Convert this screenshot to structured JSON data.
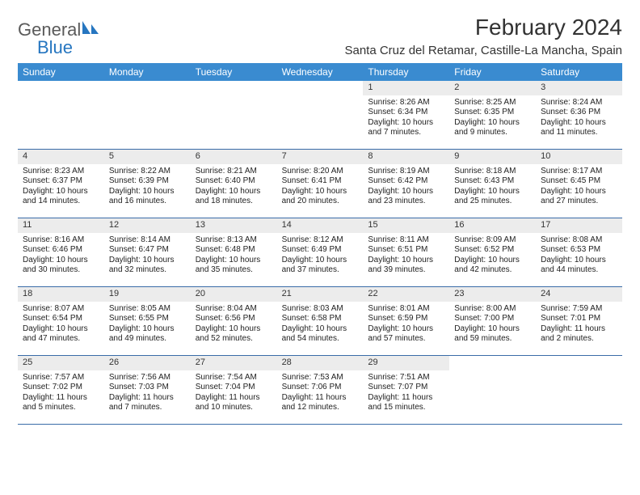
{
  "brand": {
    "general": "General",
    "blue": "Blue"
  },
  "title": "February 2024",
  "location": "Santa Cruz del Retamar, Castille-La Mancha, Spain",
  "colors": {
    "header_bg": "#3a8bd0",
    "week_divider": "#3a6ca8",
    "daynum_bg": "#ececec",
    "logo_blue": "#2676c0",
    "logo_gray": "#5a5a5a"
  },
  "daysOfWeek": [
    "Sunday",
    "Monday",
    "Tuesday",
    "Wednesday",
    "Thursday",
    "Friday",
    "Saturday"
  ],
  "weeks": [
    [
      null,
      null,
      null,
      null,
      {
        "n": "1",
        "sr": "Sunrise: 8:26 AM",
        "ss": "Sunset: 6:34 PM",
        "d1": "Daylight: 10 hours",
        "d2": "and 7 minutes."
      },
      {
        "n": "2",
        "sr": "Sunrise: 8:25 AM",
        "ss": "Sunset: 6:35 PM",
        "d1": "Daylight: 10 hours",
        "d2": "and 9 minutes."
      },
      {
        "n": "3",
        "sr": "Sunrise: 8:24 AM",
        "ss": "Sunset: 6:36 PM",
        "d1": "Daylight: 10 hours",
        "d2": "and 11 minutes."
      }
    ],
    [
      {
        "n": "4",
        "sr": "Sunrise: 8:23 AM",
        "ss": "Sunset: 6:37 PM",
        "d1": "Daylight: 10 hours",
        "d2": "and 14 minutes."
      },
      {
        "n": "5",
        "sr": "Sunrise: 8:22 AM",
        "ss": "Sunset: 6:39 PM",
        "d1": "Daylight: 10 hours",
        "d2": "and 16 minutes."
      },
      {
        "n": "6",
        "sr": "Sunrise: 8:21 AM",
        "ss": "Sunset: 6:40 PM",
        "d1": "Daylight: 10 hours",
        "d2": "and 18 minutes."
      },
      {
        "n": "7",
        "sr": "Sunrise: 8:20 AM",
        "ss": "Sunset: 6:41 PM",
        "d1": "Daylight: 10 hours",
        "d2": "and 20 minutes."
      },
      {
        "n": "8",
        "sr": "Sunrise: 8:19 AM",
        "ss": "Sunset: 6:42 PM",
        "d1": "Daylight: 10 hours",
        "d2": "and 23 minutes."
      },
      {
        "n": "9",
        "sr": "Sunrise: 8:18 AM",
        "ss": "Sunset: 6:43 PM",
        "d1": "Daylight: 10 hours",
        "d2": "and 25 minutes."
      },
      {
        "n": "10",
        "sr": "Sunrise: 8:17 AM",
        "ss": "Sunset: 6:45 PM",
        "d1": "Daylight: 10 hours",
        "d2": "and 27 minutes."
      }
    ],
    [
      {
        "n": "11",
        "sr": "Sunrise: 8:16 AM",
        "ss": "Sunset: 6:46 PM",
        "d1": "Daylight: 10 hours",
        "d2": "and 30 minutes."
      },
      {
        "n": "12",
        "sr": "Sunrise: 8:14 AM",
        "ss": "Sunset: 6:47 PM",
        "d1": "Daylight: 10 hours",
        "d2": "and 32 minutes."
      },
      {
        "n": "13",
        "sr": "Sunrise: 8:13 AM",
        "ss": "Sunset: 6:48 PM",
        "d1": "Daylight: 10 hours",
        "d2": "and 35 minutes."
      },
      {
        "n": "14",
        "sr": "Sunrise: 8:12 AM",
        "ss": "Sunset: 6:49 PM",
        "d1": "Daylight: 10 hours",
        "d2": "and 37 minutes."
      },
      {
        "n": "15",
        "sr": "Sunrise: 8:11 AM",
        "ss": "Sunset: 6:51 PM",
        "d1": "Daylight: 10 hours",
        "d2": "and 39 minutes."
      },
      {
        "n": "16",
        "sr": "Sunrise: 8:09 AM",
        "ss": "Sunset: 6:52 PM",
        "d1": "Daylight: 10 hours",
        "d2": "and 42 minutes."
      },
      {
        "n": "17",
        "sr": "Sunrise: 8:08 AM",
        "ss": "Sunset: 6:53 PM",
        "d1": "Daylight: 10 hours",
        "d2": "and 44 minutes."
      }
    ],
    [
      {
        "n": "18",
        "sr": "Sunrise: 8:07 AM",
        "ss": "Sunset: 6:54 PM",
        "d1": "Daylight: 10 hours",
        "d2": "and 47 minutes."
      },
      {
        "n": "19",
        "sr": "Sunrise: 8:05 AM",
        "ss": "Sunset: 6:55 PM",
        "d1": "Daylight: 10 hours",
        "d2": "and 49 minutes."
      },
      {
        "n": "20",
        "sr": "Sunrise: 8:04 AM",
        "ss": "Sunset: 6:56 PM",
        "d1": "Daylight: 10 hours",
        "d2": "and 52 minutes."
      },
      {
        "n": "21",
        "sr": "Sunrise: 8:03 AM",
        "ss": "Sunset: 6:58 PM",
        "d1": "Daylight: 10 hours",
        "d2": "and 54 minutes."
      },
      {
        "n": "22",
        "sr": "Sunrise: 8:01 AM",
        "ss": "Sunset: 6:59 PM",
        "d1": "Daylight: 10 hours",
        "d2": "and 57 minutes."
      },
      {
        "n": "23",
        "sr": "Sunrise: 8:00 AM",
        "ss": "Sunset: 7:00 PM",
        "d1": "Daylight: 10 hours",
        "d2": "and 59 minutes."
      },
      {
        "n": "24",
        "sr": "Sunrise: 7:59 AM",
        "ss": "Sunset: 7:01 PM",
        "d1": "Daylight: 11 hours",
        "d2": "and 2 minutes."
      }
    ],
    [
      {
        "n": "25",
        "sr": "Sunrise: 7:57 AM",
        "ss": "Sunset: 7:02 PM",
        "d1": "Daylight: 11 hours",
        "d2": "and 5 minutes."
      },
      {
        "n": "26",
        "sr": "Sunrise: 7:56 AM",
        "ss": "Sunset: 7:03 PM",
        "d1": "Daylight: 11 hours",
        "d2": "and 7 minutes."
      },
      {
        "n": "27",
        "sr": "Sunrise: 7:54 AM",
        "ss": "Sunset: 7:04 PM",
        "d1": "Daylight: 11 hours",
        "d2": "and 10 minutes."
      },
      {
        "n": "28",
        "sr": "Sunrise: 7:53 AM",
        "ss": "Sunset: 7:06 PM",
        "d1": "Daylight: 11 hours",
        "d2": "and 12 minutes."
      },
      {
        "n": "29",
        "sr": "Sunrise: 7:51 AM",
        "ss": "Sunset: 7:07 PM",
        "d1": "Daylight: 11 hours",
        "d2": "and 15 minutes."
      },
      null,
      null
    ]
  ]
}
